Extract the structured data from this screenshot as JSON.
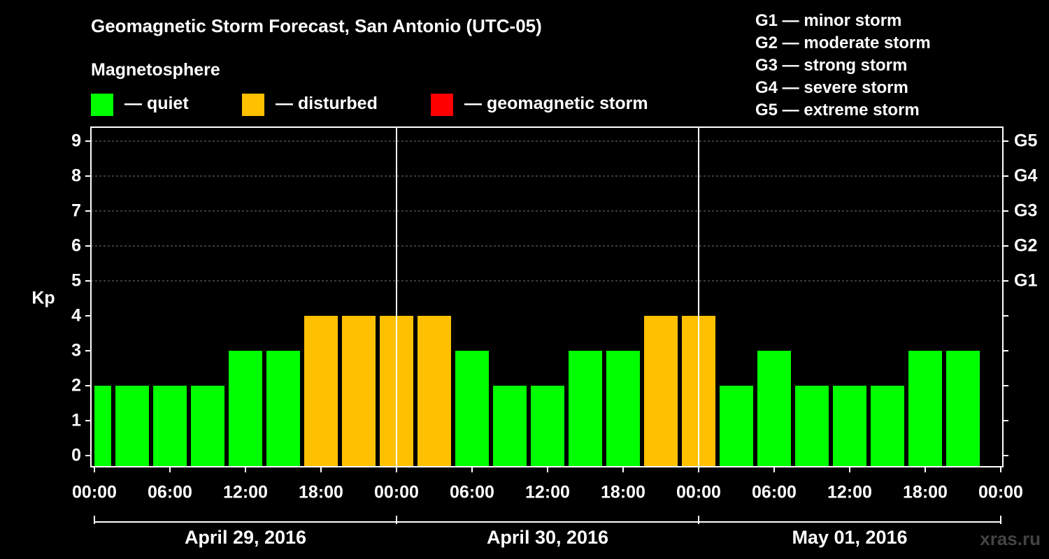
{
  "title": "Geomagnetic Storm Forecast, San Antonio (UTC-05)",
  "legend": {
    "heading": "Magnetosphere",
    "items": [
      {
        "label": "— quiet",
        "color": "#00ff00"
      },
      {
        "label": "— disturbed",
        "color": "#ffc000"
      },
      {
        "label": "— geomagnetic storm",
        "color": "#ff0000"
      }
    ]
  },
  "storm_levels": [
    "G1 — minor storm",
    "G2 — moderate storm",
    "G3 — strong storm",
    "G4 — severe storm",
    "G5 — extreme storm"
  ],
  "watermark": "xras.ru",
  "chart_data": {
    "type": "bar",
    "ylabel": "Kp",
    "ylim": [
      0,
      9
    ],
    "yticks": [
      "0",
      "1",
      "2",
      "3",
      "4",
      "5",
      "6",
      "7",
      "8",
      "9"
    ],
    "right_axis_labels": [
      {
        "kp": 5,
        "label": "G1"
      },
      {
        "kp": 6,
        "label": "G2"
      },
      {
        "kp": 7,
        "label": "G3"
      },
      {
        "kp": 8,
        "label": "G4"
      },
      {
        "kp": 9,
        "label": "G5"
      }
    ],
    "x_tick_labels": [
      "00:00",
      "06:00",
      "12:00",
      "18:00",
      "00:00",
      "06:00",
      "12:00",
      "18:00",
      "00:00",
      "06:00",
      "12:00",
      "18:00",
      "00:00"
    ],
    "day_labels": [
      "April 29, 2016",
      "April 30, 2016",
      "May 01, 2016"
    ],
    "grid": true,
    "bin_hours": 3,
    "colors": {
      "quiet": "#00ff00",
      "disturbed": "#ffc000",
      "storm": "#ff0000"
    },
    "values": [
      2,
      2,
      2,
      2,
      3,
      3,
      4,
      4,
      4,
      4,
      3,
      2,
      2,
      3,
      3,
      4,
      4,
      2,
      3,
      2,
      2,
      2,
      3,
      3
    ]
  }
}
